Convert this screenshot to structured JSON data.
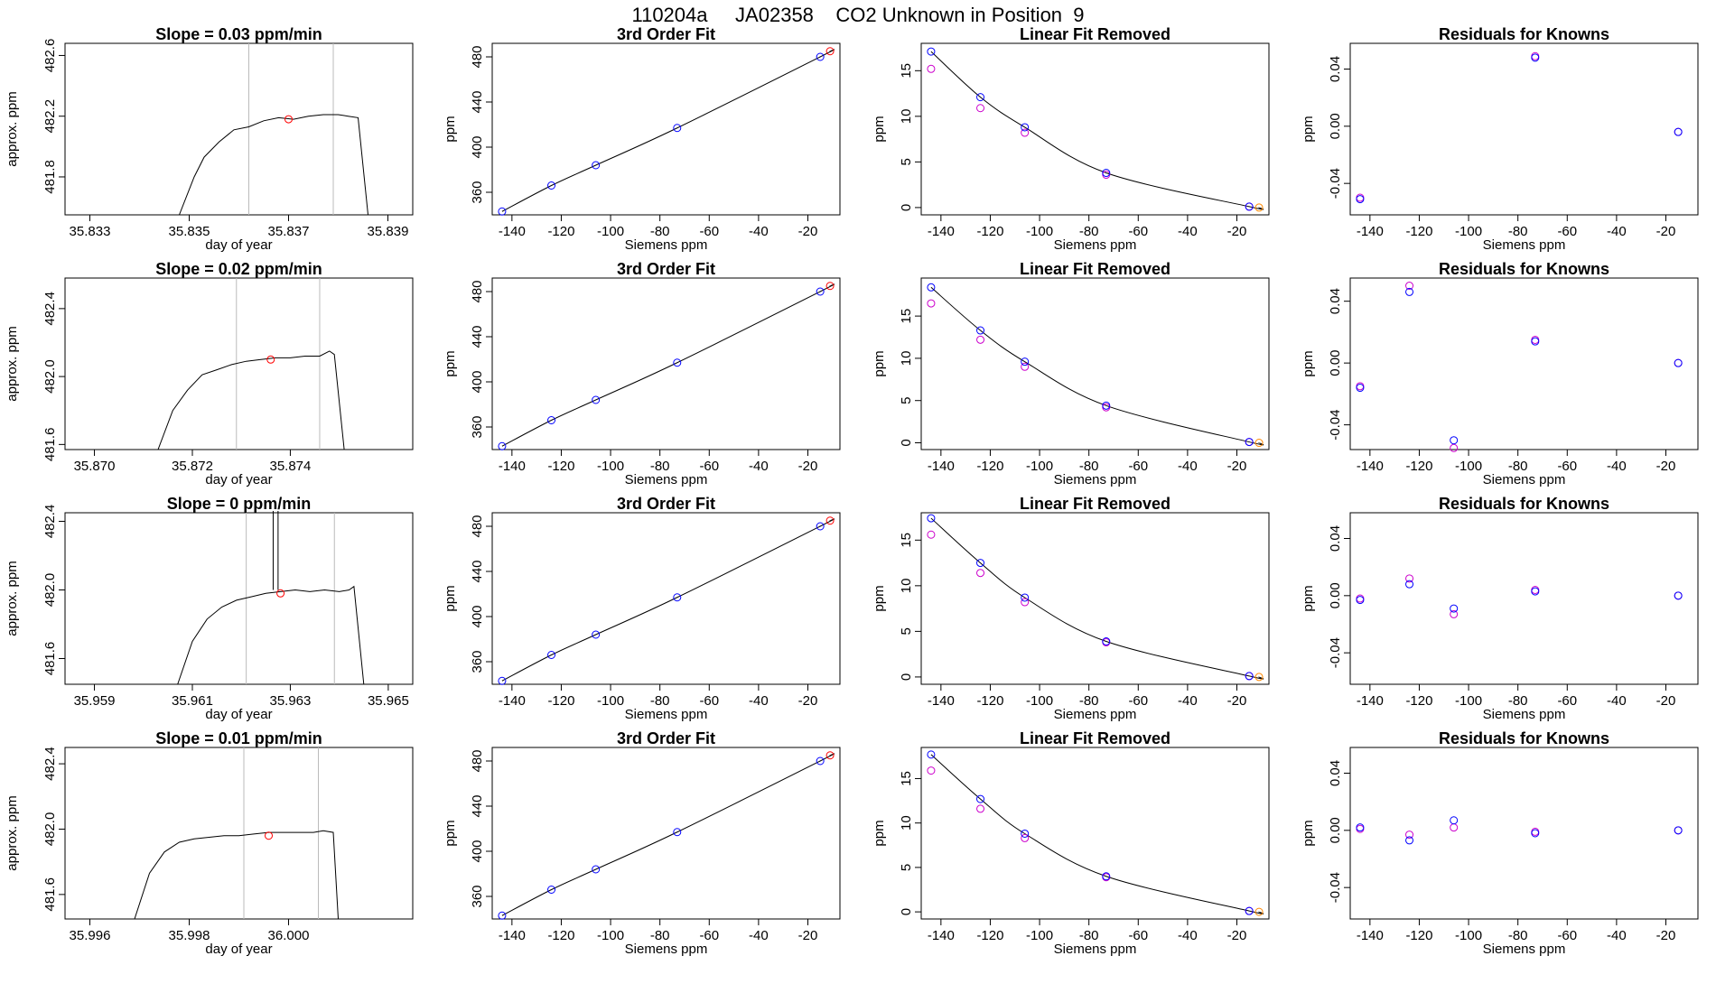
{
  "page_title": "110204a     JA02358    CO2 Unknown in Position  9",
  "colors": {
    "known_point": "#0000ff",
    "unknown_point": "#ff0000",
    "alt_point": "#cc00cc",
    "fit_line": "#000000",
    "marker_line": "#bbbbbb",
    "unknown_point_linear": "#ff8800"
  },
  "chart_data": [
    {
      "type": "line",
      "title": "Slope =  0.03  ppm/min",
      "xlabel": "day of year",
      "ylabel": "approx. ppm",
      "xlim": [
        35.8325,
        35.8395
      ],
      "ylim": [
        481.55,
        482.68
      ],
      "x_ticks": [
        "35.833",
        "35.835",
        "35.837",
        "35.839"
      ],
      "x_tick_values": [
        35.833,
        35.835,
        35.837,
        35.839
      ],
      "y_ticks": [
        "481.8",
        "482.2",
        "482.6"
      ],
      "y_tick_values": [
        481.8,
        482.2,
        482.6
      ],
      "markers": [
        35.8362,
        35.8379
      ],
      "series": [
        {
          "x": [
            35.8348,
            35.8351,
            35.8353,
            35.8356,
            35.8359,
            35.8362,
            35.8365,
            35.8368,
            35.8371,
            35.8374,
            35.8377,
            35.838,
            35.8382,
            35.8384,
            35.8386
          ],
          "values": [
            481.55,
            481.8,
            481.93,
            482.03,
            482.11,
            482.13,
            482.17,
            482.19,
            482.18,
            482.2,
            482.21,
            482.21,
            482.2,
            482.19,
            481.55
          ]
        }
      ],
      "point": {
        "x": 35.837,
        "y": 482.18
      }
    },
    {
      "type": "scatter",
      "title": "3rd Order Fit",
      "xlabel": "Siemens ppm",
      "ylabel": "ppm",
      "xlim": [
        -148,
        -7
      ],
      "ylim": [
        340,
        492
      ],
      "x_ticks": [
        "-140",
        "-120",
        "-100",
        "-80",
        "-60",
        "-40",
        "-20"
      ],
      "x_tick_values": [
        -140,
        -120,
        -100,
        -80,
        -60,
        -40,
        -20
      ],
      "y_ticks": [
        "360",
        "400",
        "440",
        "480"
      ],
      "y_tick_values": [
        360,
        400,
        440,
        480
      ],
      "knowns": {
        "x": [
          -144,
          -124,
          -106,
          -73,
          -15
        ],
        "y": [
          343,
          366,
          384,
          417,
          480
        ]
      },
      "unknown": {
        "x": [
          -11
        ],
        "y": [
          485
        ]
      }
    },
    {
      "type": "scatter",
      "title": "Linear Fit Removed",
      "xlabel": "Siemens ppm",
      "ylabel": "ppm",
      "xlim": [
        -148,
        -7
      ],
      "ylim": [
        -0.8,
        18
      ],
      "x_ticks": [
        "-140",
        "-120",
        "-100",
        "-80",
        "-60",
        "-40",
        "-20"
      ],
      "x_tick_values": [
        -140,
        -120,
        -100,
        -80,
        -60,
        -40,
        -20
      ],
      "y_ticks": [
        "0",
        "5",
        "10",
        "15"
      ],
      "y_tick_values": [
        0,
        5,
        10,
        15
      ],
      "knowns": {
        "x": [
          -144,
          -124,
          -106,
          -73,
          -15
        ],
        "y": [
          17.1,
          12.1,
          8.8,
          3.8,
          0.1
        ]
      },
      "alt": {
        "x": [
          -144,
          -124,
          -106,
          -73,
          -15
        ],
        "y": [
          15.2,
          10.9,
          8.2,
          3.6,
          0.1
        ]
      },
      "unknown": {
        "x": [
          -11
        ],
        "y": [
          0.0
        ]
      }
    },
    {
      "type": "scatter",
      "title": "Residuals for Knowns",
      "xlabel": "Siemens ppm",
      "ylabel": "ppm",
      "xlim": [
        -148,
        -7
      ],
      "ylim": [
        -0.062,
        0.058
      ],
      "x_ticks": [
        "-140",
        "-120",
        "-100",
        "-80",
        "-60",
        "-40",
        "-20"
      ],
      "x_tick_values": [
        -140,
        -120,
        -100,
        -80,
        -60,
        -40,
        -20
      ],
      "y_ticks": [
        "-0.04",
        "0.00",
        "0.04"
      ],
      "y_tick_values": [
        -0.04,
        0,
        0.04
      ],
      "knowns": {
        "x": [
          -144,
          -73,
          -15
        ],
        "y": [
          -0.051,
          0.048,
          -0.004
        ]
      },
      "alt": {
        "x": [
          -144,
          -73,
          -15
        ],
        "y": [
          -0.05,
          0.049,
          -0.004
        ]
      }
    },
    {
      "type": "line",
      "title": "Slope =  0.02  ppm/min",
      "xlabel": "day of year",
      "ylabel": "approx. ppm",
      "xlim": [
        35.8694,
        35.8765
      ],
      "ylim": [
        481.57,
        482.58
      ],
      "x_ticks": [
        "35.870",
        "35.872",
        "35.874"
      ],
      "x_tick_values": [
        35.87,
        35.872,
        35.874
      ],
      "y_ticks": [
        "481.6",
        "482.0",
        "482.4"
      ],
      "y_tick_values": [
        481.6,
        482.0,
        482.4
      ],
      "markers": [
        35.8729,
        35.8746
      ],
      "series": [
        {
          "x": [
            35.8713,
            35.8716,
            35.8719,
            35.8722,
            35.8725,
            35.8728,
            35.8731,
            35.8734,
            35.8737,
            35.874,
            35.8743,
            35.8746,
            35.8748,
            35.8749,
            35.8751
          ],
          "values": [
            481.57,
            481.8,
            481.92,
            482.01,
            482.04,
            482.07,
            482.09,
            482.1,
            482.11,
            482.11,
            482.12,
            482.12,
            482.15,
            482.13,
            481.57
          ]
        }
      ],
      "point": {
        "x": 35.8736,
        "y": 482.1
      }
    },
    {
      "type": "scatter",
      "title": "3rd Order Fit",
      "xlabel": "Siemens ppm",
      "ylabel": "ppm",
      "xlim": [
        -148,
        -7
      ],
      "ylim": [
        340,
        492
      ],
      "x_ticks": [
        "-140",
        "-120",
        "-100",
        "-80",
        "-60",
        "-40",
        "-20"
      ],
      "x_tick_values": [
        -140,
        -120,
        -100,
        -80,
        -60,
        -40,
        -20
      ],
      "y_ticks": [
        "360",
        "400",
        "440",
        "480"
      ],
      "y_tick_values": [
        360,
        400,
        440,
        480
      ],
      "knowns": {
        "x": [
          -144,
          -124,
          -106,
          -73,
          -15
        ],
        "y": [
          343,
          366,
          384,
          417,
          480
        ]
      },
      "unknown": {
        "x": [
          -11
        ],
        "y": [
          485
        ]
      }
    },
    {
      "type": "scatter",
      "title": "Linear Fit Removed",
      "xlabel": "Siemens ppm",
      "ylabel": "ppm",
      "xlim": [
        -148,
        -7
      ],
      "ylim": [
        -0.8,
        19.5
      ],
      "x_ticks": [
        "-140",
        "-120",
        "-100",
        "-80",
        "-60",
        "-40",
        "-20"
      ],
      "x_tick_values": [
        -140,
        -120,
        -100,
        -80,
        -60,
        -40,
        -20
      ],
      "y_ticks": [
        "0",
        "5",
        "10",
        "15"
      ],
      "y_tick_values": [
        0,
        5,
        10,
        15
      ],
      "knowns": {
        "x": [
          -144,
          -124,
          -106,
          -73,
          -15
        ],
        "y": [
          18.4,
          13.3,
          9.6,
          4.4,
          0.1
        ]
      },
      "alt": {
        "x": [
          -144,
          -124,
          -106,
          -73,
          -15
        ],
        "y": [
          16.5,
          12.2,
          9.0,
          4.2,
          0.1
        ]
      },
      "unknown": {
        "x": [
          -11
        ],
        "y": [
          0.0
        ]
      }
    },
    {
      "type": "scatter",
      "title": "Residuals for Knowns",
      "xlabel": "Siemens ppm",
      "ylabel": "ppm",
      "xlim": [
        -148,
        -7
      ],
      "ylim": [
        -0.056,
        0.055
      ],
      "x_ticks": [
        "-140",
        "-120",
        "-100",
        "-80",
        "-60",
        "-40",
        "-20"
      ],
      "x_tick_values": [
        -140,
        -120,
        -100,
        -80,
        -60,
        -40,
        -20
      ],
      "y_ticks": [
        "-0.04",
        "0.00",
        "0.04"
      ],
      "y_tick_values": [
        -0.04,
        0,
        0.04
      ],
      "knowns": {
        "x": [
          -144,
          -124,
          -106,
          -73,
          -15
        ],
        "y": [
          -0.016,
          0.046,
          -0.05,
          0.014,
          0.0
        ]
      },
      "alt": {
        "x": [
          -144,
          -124,
          -106,
          -73,
          -15
        ],
        "y": [
          -0.015,
          0.05,
          -0.055,
          0.015,
          0.0
        ]
      }
    },
    {
      "type": "line",
      "title": "Slope =  0  ppm/min",
      "xlabel": "day of year",
      "ylabel": "approx. ppm",
      "xlim": [
        35.9584,
        35.9655
      ],
      "ylim": [
        481.45,
        482.45
      ],
      "x_ticks": [
        "35.959",
        "35.961",
        "35.963",
        "35.965"
      ],
      "x_tick_values": [
        35.959,
        35.961,
        35.963,
        35.965
      ],
      "y_ticks": [
        "481.6",
        "482.0",
        "482.4"
      ],
      "y_tick_values": [
        481.6,
        482.0,
        482.4
      ],
      "markers": [
        35.9621,
        35.9639
      ],
      "spike": {
        "x": [
          35.96265,
          35.96275
        ],
        "y": 482.45
      },
      "series": [
        {
          "x": [
            35.9607,
            35.961,
            35.9613,
            35.9616,
            35.9619,
            35.9622,
            35.9625,
            35.9628,
            35.9631,
            35.9634,
            35.9637,
            35.964,
            35.9642,
            35.9643,
            35.9645
          ],
          "values": [
            481.45,
            481.7,
            481.83,
            481.9,
            481.94,
            481.96,
            481.98,
            481.99,
            482.0,
            481.99,
            482.0,
            481.99,
            482.0,
            482.02,
            481.45
          ]
        }
      ],
      "point": {
        "x": 35.9628,
        "y": 481.98
      }
    },
    {
      "type": "scatter",
      "title": "3rd Order Fit",
      "xlabel": "Siemens ppm",
      "ylabel": "ppm",
      "xlim": [
        -148,
        -7
      ],
      "ylim": [
        340,
        492
      ],
      "x_ticks": [
        "-140",
        "-120",
        "-100",
        "-80",
        "-60",
        "-40",
        "-20"
      ],
      "x_tick_values": [
        -140,
        -120,
        -100,
        -80,
        -60,
        -40,
        -20
      ],
      "y_ticks": [
        "360",
        "400",
        "440",
        "480"
      ],
      "y_tick_values": [
        360,
        400,
        440,
        480
      ],
      "knowns": {
        "x": [
          -144,
          -124,
          -106,
          -73,
          -15
        ],
        "y": [
          343,
          366,
          384,
          417,
          480
        ]
      },
      "unknown": {
        "x": [
          -11
        ],
        "y": [
          485
        ]
      }
    },
    {
      "type": "scatter",
      "title": "Linear Fit Removed",
      "xlabel": "Siemens ppm",
      "ylabel": "ppm",
      "xlim": [
        -148,
        -7
      ],
      "ylim": [
        -0.8,
        18
      ],
      "x_ticks": [
        "-140",
        "-120",
        "-100",
        "-80",
        "-60",
        "-40",
        "-20"
      ],
      "x_tick_values": [
        -140,
        -120,
        -100,
        -80,
        -60,
        -40,
        -20
      ],
      "y_ticks": [
        "0",
        "5",
        "10",
        "15"
      ],
      "y_tick_values": [
        0,
        5,
        10,
        15
      ],
      "knowns": {
        "x": [
          -144,
          -124,
          -106,
          -73,
          -15
        ],
        "y": [
          17.4,
          12.5,
          8.7,
          3.9,
          0.1
        ]
      },
      "alt": {
        "x": [
          -144,
          -124,
          -106,
          -73,
          -15
        ],
        "y": [
          15.6,
          11.4,
          8.2,
          3.8,
          0.1
        ]
      },
      "unknown": {
        "x": [
          -11
        ],
        "y": [
          0.0
        ]
      }
    },
    {
      "type": "scatter",
      "title": "Residuals for Knowns",
      "xlabel": "Siemens ppm",
      "ylabel": "ppm",
      "xlim": [
        -148,
        -7
      ],
      "ylim": [
        -0.062,
        0.058
      ],
      "x_ticks": [
        "-140",
        "-120",
        "-100",
        "-80",
        "-60",
        "-40",
        "-20"
      ],
      "x_tick_values": [
        -140,
        -120,
        -100,
        -80,
        -60,
        -40,
        -20
      ],
      "y_ticks": [
        "-0.04",
        "0.00",
        "0.04"
      ],
      "y_tick_values": [
        -0.04,
        0,
        0.04
      ],
      "knowns": {
        "x": [
          -144,
          -124,
          -106,
          -73,
          -15
        ],
        "y": [
          -0.003,
          0.008,
          -0.009,
          0.003,
          0.0
        ]
      },
      "alt": {
        "x": [
          -144,
          -124,
          -106,
          -73,
          -15
        ],
        "y": [
          -0.002,
          0.012,
          -0.013,
          0.004,
          0.0
        ]
      }
    },
    {
      "type": "line",
      "title": "Slope =  0.01  ppm/min",
      "xlabel": "day of year",
      "ylabel": "approx. ppm",
      "xlim": [
        35.9955,
        36.0025
      ],
      "ylim": [
        481.45,
        482.5
      ],
      "x_ticks": [
        "35.996",
        "35.998",
        "36.000"
      ],
      "x_tick_values": [
        35.996,
        35.998,
        36.0
      ],
      "y_ticks": [
        "481.6",
        "482.0",
        "482.4"
      ],
      "y_tick_values": [
        481.6,
        482.0,
        482.4
      ],
      "markers": [
        35.9991,
        36.0006
      ],
      "series": [
        {
          "x": [
            35.9969,
            35.9972,
            35.9975,
            35.9978,
            35.9981,
            35.9984,
            35.9987,
            35.999,
            35.9993,
            35.9996,
            35.9999,
            36.0002,
            36.0005,
            36.0007,
            36.0009,
            36.001
          ],
          "values": [
            481.45,
            481.73,
            481.86,
            481.92,
            481.94,
            481.95,
            481.96,
            481.96,
            481.97,
            481.98,
            481.98,
            481.98,
            481.98,
            481.99,
            481.98,
            481.45
          ]
        }
      ],
      "point": {
        "x": 35.9996,
        "y": 481.96
      }
    },
    {
      "type": "scatter",
      "title": "3rd Order Fit",
      "xlabel": "Siemens ppm",
      "ylabel": "ppm",
      "xlim": [
        -148,
        -7
      ],
      "ylim": [
        340,
        492
      ],
      "x_ticks": [
        "-140",
        "-120",
        "-100",
        "-80",
        "-60",
        "-40",
        "-20"
      ],
      "x_tick_values": [
        -140,
        -120,
        -100,
        -80,
        -60,
        -40,
        -20
      ],
      "y_ticks": [
        "360",
        "400",
        "440",
        "480"
      ],
      "y_tick_values": [
        360,
        400,
        440,
        480
      ],
      "knowns": {
        "x": [
          -144,
          -124,
          -106,
          -73,
          -15
        ],
        "y": [
          343,
          366,
          384,
          417,
          480
        ]
      },
      "unknown": {
        "x": [
          -11
        ],
        "y": [
          485
        ]
      }
    },
    {
      "type": "scatter",
      "title": "Linear Fit Removed",
      "xlabel": "Siemens ppm",
      "ylabel": "ppm",
      "xlim": [
        -148,
        -7
      ],
      "ylim": [
        -0.8,
        18.5
      ],
      "x_ticks": [
        "-140",
        "-120",
        "-100",
        "-80",
        "-60",
        "-40",
        "-20"
      ],
      "x_tick_values": [
        -140,
        -120,
        -100,
        -80,
        -60,
        -40,
        -20
      ],
      "y_ticks": [
        "0",
        "5",
        "10",
        "15"
      ],
      "y_tick_values": [
        0,
        5,
        10,
        15
      ],
      "knowns": {
        "x": [
          -144,
          -124,
          -106,
          -73,
          -15
        ],
        "y": [
          17.7,
          12.7,
          8.8,
          4.0,
          0.1
        ]
      },
      "alt": {
        "x": [
          -144,
          -124,
          -106,
          -73,
          -15
        ],
        "y": [
          15.9,
          11.6,
          8.3,
          3.9,
          0.1
        ]
      },
      "unknown": {
        "x": [
          -11
        ],
        "y": [
          0.0
        ]
      }
    },
    {
      "type": "scatter",
      "title": "Residuals for Knowns",
      "xlabel": "Siemens ppm",
      "ylabel": "ppm",
      "xlim": [
        -148,
        -7
      ],
      "ylim": [
        -0.062,
        0.058
      ],
      "x_ticks": [
        "-140",
        "-120",
        "-100",
        "-80",
        "-60",
        "-40",
        "-20"
      ],
      "x_tick_values": [
        -140,
        -120,
        -100,
        -80,
        -60,
        -40,
        -20
      ],
      "y_ticks": [
        "-0.04",
        "0.00",
        "0.04"
      ],
      "y_tick_values": [
        -0.04,
        0,
        0.04
      ],
      "knowns": {
        "x": [
          -144,
          -124,
          -106,
          -73,
          -15
        ],
        "y": [
          0.002,
          -0.007,
          0.007,
          -0.002,
          0.0
        ]
      },
      "alt": {
        "x": [
          -144,
          -124,
          -106,
          -73,
          -15
        ],
        "y": [
          0.001,
          -0.003,
          0.002,
          -0.001,
          0.0
        ]
      }
    }
  ]
}
